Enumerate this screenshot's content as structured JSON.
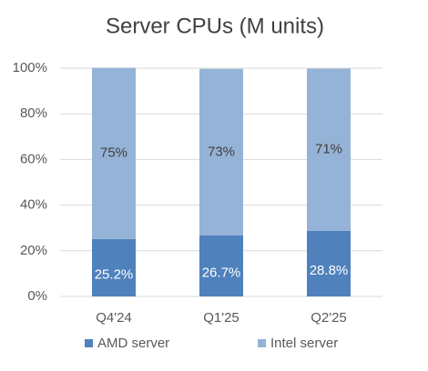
{
  "chart_data": {
    "type": "stacked_bar",
    "title": "Server CPUs (M units)",
    "categories": [
      "Q4'24",
      "Q1'25",
      "Q2'25"
    ],
    "series": [
      {
        "name": "AMD server",
        "color": "#4f81bd",
        "values": [
          25.2,
          26.7,
          28.8
        ],
        "value_labels": [
          "25.2%",
          "26.7%",
          "28.8%"
        ]
      },
      {
        "name": "Intel server",
        "color": "#95b3d7",
        "values": [
          75,
          73,
          71
        ],
        "value_labels": [
          "75%",
          "73%",
          "71%"
        ]
      }
    ],
    "ylim": [
      0,
      100
    ],
    "yticks": [
      {
        "value": 0,
        "label": "0%"
      },
      {
        "value": 20,
        "label": "20%"
      },
      {
        "value": 40,
        "label": "40%"
      },
      {
        "value": 60,
        "label": "60%"
      },
      {
        "value": 80,
        "label": "80%"
      },
      {
        "value": 100,
        "label": "100%"
      }
    ],
    "grid": true,
    "legend": "bottom"
  }
}
